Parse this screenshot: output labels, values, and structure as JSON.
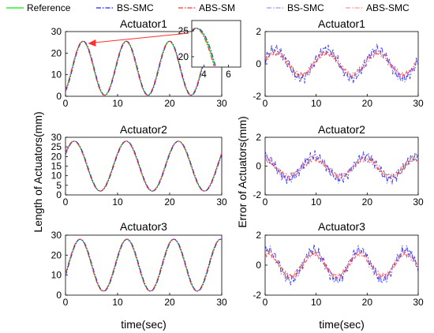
{
  "legend": {
    "entries": [
      {
        "label": "Reference",
        "color": "#00ee00",
        "dash": "solid"
      },
      {
        "label": "BS-SMC",
        "color": "#2222ff",
        "dash": "dashdot"
      },
      {
        "label": "ABS-SM",
        "color": "#ff3333",
        "dash": "dashdot"
      },
      {
        "label": "BS-SMC",
        "color": "#9999ff",
        "dash": "dashdot"
      },
      {
        "label": "ABS-SMC",
        "color": "#ff9999",
        "dash": "dashdot"
      }
    ]
  },
  "labels": {
    "left_ylabel": "Length of Actuators(mm)",
    "right_ylabel": "Error of Actuators(mm)",
    "xlabel": "time(sec)"
  },
  "chart_data": [
    {
      "type": "line",
      "title": "Actuator1",
      "column": "left",
      "row": 0,
      "xlim": [
        0,
        30
      ],
      "ylim": [
        0,
        30
      ],
      "xticks": [
        0,
        10,
        20,
        30
      ],
      "yticks": [
        0,
        10,
        20,
        30
      ],
      "signal": {
        "offset": 13,
        "amp": 12.5,
        "period": 8.3,
        "phase": 0.6
      },
      "series": [
        {
          "name": "Reference"
        },
        {
          "name": "BS-SMC"
        },
        {
          "name": "ABS-SM"
        }
      ]
    },
    {
      "type": "line",
      "title": "Actuator2",
      "column": "left",
      "row": 1,
      "xlim": [
        0,
        30
      ],
      "ylim": [
        0,
        30
      ],
      "xticks": [
        0,
        10,
        20,
        30
      ],
      "yticks": [
        0,
        5,
        10,
        15,
        20,
        25,
        30
      ],
      "signal": {
        "offset": 15,
        "amp": 13,
        "period": 10,
        "phase": 2.1
      },
      "series": [
        {
          "name": "Reference"
        },
        {
          "name": "BS-SMC"
        },
        {
          "name": "ABS-SM"
        }
      ]
    },
    {
      "type": "line",
      "title": "Actuator3",
      "column": "left",
      "row": 2,
      "xlim": [
        0,
        30
      ],
      "ylim": [
        0,
        30
      ],
      "xticks": [
        0,
        10,
        20,
        30
      ],
      "yticks": [
        0,
        10,
        20,
        30
      ],
      "signal": {
        "offset": 15,
        "amp": 13,
        "period": 9,
        "phase": 1.2
      },
      "series": [
        {
          "name": "Reference"
        },
        {
          "name": "BS-SMC"
        },
        {
          "name": "ABS-SM"
        }
      ]
    },
    {
      "type": "line",
      "title": "Actuator1",
      "column": "right",
      "row": 0,
      "xlim": [
        0,
        30
      ],
      "ylim": [
        -2,
        2
      ],
      "xticks": [
        0,
        10,
        20,
        30
      ],
      "yticks": [
        -2,
        0,
        2
      ],
      "error": {
        "offset": 0,
        "amp": 0.9,
        "period": 10,
        "phase": 0.3,
        "noise": 0.4
      },
      "series": [
        {
          "name": "BS-SMC"
        },
        {
          "name": "ABS-SMC"
        }
      ]
    },
    {
      "type": "line",
      "title": "Actuator2",
      "column": "right",
      "row": 1,
      "xlim": [
        0,
        30
      ],
      "ylim": [
        -2,
        2
      ],
      "xticks": [
        0,
        10,
        20,
        30
      ],
      "yticks": [
        -2,
        0,
        2
      ],
      "error": {
        "offset": -0.1,
        "amp": 0.8,
        "period": 10,
        "phase": 1.8,
        "noise": 0.45
      },
      "series": [
        {
          "name": "BS-SMC"
        },
        {
          "name": "ABS-SMC"
        }
      ]
    },
    {
      "type": "line",
      "title": "Actuator3",
      "column": "right",
      "row": 2,
      "xlim": [
        0,
        30
      ],
      "ylim": [
        -2,
        2
      ],
      "xticks": [
        0,
        10,
        20,
        30
      ],
      "yticks": [
        -2,
        0,
        2
      ],
      "error": {
        "offset": 0,
        "amp": 1.0,
        "period": 9,
        "phase": 1.2,
        "noise": 0.45
      },
      "series": [
        {
          "name": "BS-SMC"
        },
        {
          "name": "ABS-SMC"
        }
      ]
    }
  ],
  "inset": {
    "parent": "Actuator1",
    "xlim": [
      3,
      7
    ],
    "ylim": [
      18,
      27
    ],
    "xticks": [
      4,
      6
    ],
    "yticks": [
      20,
      25
    ]
  }
}
